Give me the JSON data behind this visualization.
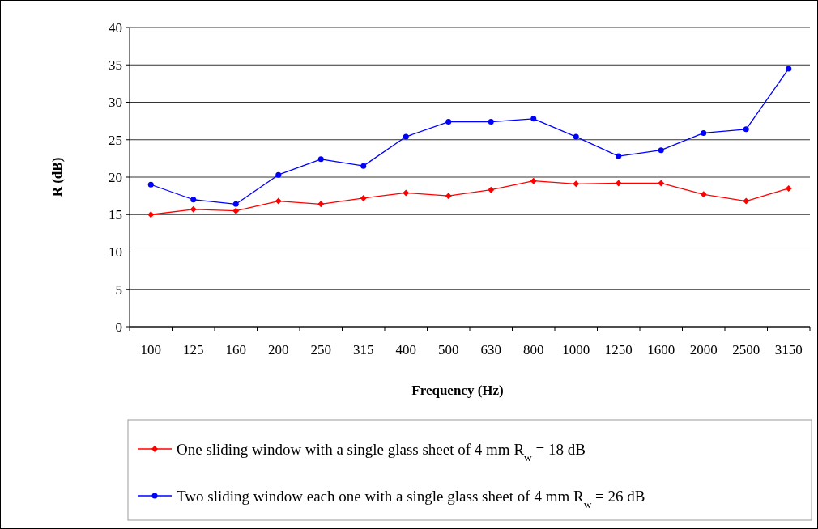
{
  "chart_data": {
    "type": "line",
    "xlabel": "Frequency (Hz)",
    "ylabel": "R (dB)",
    "categories": [
      "100",
      "125",
      "160",
      "200",
      "250",
      "315",
      "400",
      "500",
      "630",
      "800",
      "1000",
      "1250",
      "1600",
      "2000",
      "2500",
      "3150"
    ],
    "series": [
      {
        "name": "One sliding window with a single glass sheet of 4 mm    R$_{w}$ = 18 dB",
        "color": "#ff0000",
        "marker": "diamond",
        "values": [
          15.0,
          15.7,
          15.5,
          16.8,
          16.4,
          17.2,
          17.9,
          17.5,
          18.3,
          19.5,
          19.1,
          19.2,
          19.2,
          17.7,
          16.8,
          18.5
        ]
      },
      {
        "name": "Two sliding window each one with a single glass sheet of 4 mm    R$_{w}$ = 26 dB",
        "color": "#0000ff",
        "marker": "circle",
        "values": [
          19.0,
          17.0,
          16.4,
          20.3,
          22.4,
          21.5,
          25.4,
          27.4,
          27.4,
          27.8,
          25.4,
          22.8,
          23.6,
          25.9,
          26.4,
          34.5
        ]
      }
    ],
    "ylim": [
      0,
      40
    ],
    "yticks": [
      0,
      5,
      10,
      15,
      20,
      25,
      30,
      35,
      40
    ],
    "grid": "y",
    "legend": "bottom"
  }
}
